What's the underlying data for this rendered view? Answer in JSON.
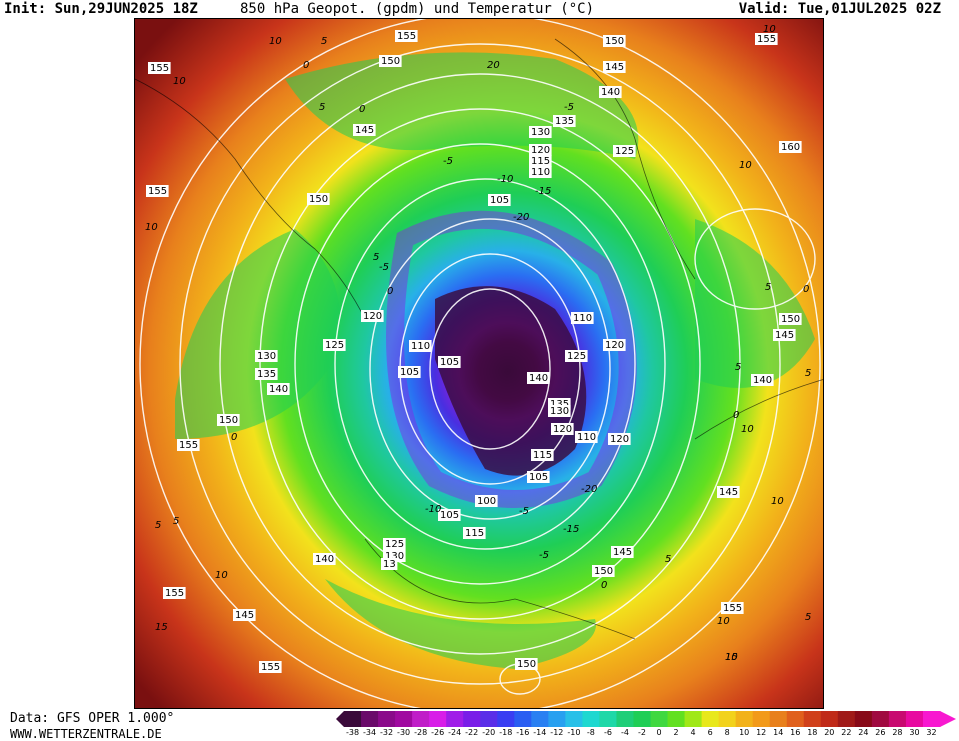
{
  "header": {
    "init": "Init: Sun,29JUN2025 18Z",
    "title": "850 hPa Geopot. (gpdm) und Temperatur (°C)",
    "valid": "Valid: Tue,01JUL2025 02Z"
  },
  "footer": {
    "source": "Data: GFS OPER 1.000°",
    "website": "WWW.WETTERZENTRALE.DE"
  },
  "colors": {
    "dark_red": "#7a1010",
    "red": "#c8341a",
    "orange": "#e8801c",
    "yellow_orange": "#f2b21a",
    "yellow": "#f2e21c",
    "light_green": "#62e020",
    "green": "#1fce56",
    "teal": "#1fc8a0",
    "cyan": "#28b0e8",
    "blue": "#2a5ef2",
    "indigo": "#4a2ee0",
    "purple": "#8a1ee8",
    "magenta": "#c81ed8",
    "dark_purple": "#3a0a3a"
  },
  "legend": {
    "ticks": [
      "-38",
      "-34",
      "-32",
      "-30",
      "-28",
      "-26",
      "-24",
      "-22",
      "-20",
      "-18",
      "-16",
      "-14",
      "-12",
      "-10",
      "-8",
      "-6",
      "-4",
      "-2",
      "0",
      "2",
      "4",
      "6",
      "8",
      "10",
      "12",
      "14",
      "16",
      "18",
      "20",
      "22",
      "24",
      "26",
      "28",
      "30",
      "32"
    ],
    "colors": [
      "#3a0a3a",
      "#6a0a6a",
      "#8a0a8a",
      "#a00aa0",
      "#c01ec8",
      "#d81ee8",
      "#a01ee8",
      "#7a1ee8",
      "#5a2ee8",
      "#3a3ef2",
      "#2a5ef2",
      "#2a80f2",
      "#28a0f0",
      "#28c0e8",
      "#1fd8d0",
      "#1fd8a8",
      "#1fce78",
      "#1fce56",
      "#40d840",
      "#62e020",
      "#a0e818",
      "#e8e81c",
      "#f2d21c",
      "#f2b21a",
      "#f29a1a",
      "#e8801c",
      "#e0601c",
      "#d0401a",
      "#c02a18",
      "#a01a18",
      "#880a18",
      "#a00a40",
      "#c80a70",
      "#e80aa0",
      "#f818d0"
    ]
  },
  "map_labels": {
    "geopotential": [
      {
        "text": "155"
      },
      {
        "text": "155"
      },
      {
        "text": "150"
      },
      {
        "text": "150"
      },
      {
        "text": "145"
      },
      {
        "text": "140"
      },
      {
        "text": "145"
      },
      {
        "text": "135"
      },
      {
        "text": "130"
      },
      {
        "text": "120"
      },
      {
        "text": "115"
      },
      {
        "text": "110"
      },
      {
        "text": "125"
      },
      {
        "text": "155"
      },
      {
        "text": "160"
      },
      {
        "text": "155"
      },
      {
        "text": "150"
      },
      {
        "text": "105"
      },
      {
        "text": "120"
      },
      {
        "text": "125"
      },
      {
        "text": "130"
      },
      {
        "text": "135"
      },
      {
        "text": "140"
      },
      {
        "text": "150"
      },
      {
        "text": "155"
      },
      {
        "text": "110"
      },
      {
        "text": "105"
      },
      {
        "text": "105"
      },
      {
        "text": "110"
      },
      {
        "text": "120"
      },
      {
        "text": "125"
      },
      {
        "text": "140"
      },
      {
        "text": "135"
      },
      {
        "text": "130"
      },
      {
        "text": "120"
      },
      {
        "text": "110"
      },
      {
        "text": "115"
      },
      {
        "text": "105"
      },
      {
        "text": "120"
      },
      {
        "text": "150"
      },
      {
        "text": "145"
      },
      {
        "text": "140"
      },
      {
        "text": "145"
      },
      {
        "text": "100"
      },
      {
        "text": "105"
      },
      {
        "text": "115"
      },
      {
        "text": "125"
      },
      {
        "text": "130"
      },
      {
        "text": "13"
      },
      {
        "text": "140"
      },
      {
        "text": "145"
      },
      {
        "text": "150"
      },
      {
        "text": "155"
      },
      {
        "text": "155"
      },
      {
        "text": "145"
      },
      {
        "text": "150"
      },
      {
        "text": "155"
      }
    ],
    "temperature": [
      {
        "text": "10"
      },
      {
        "text": "5"
      },
      {
        "text": "0"
      },
      {
        "text": "20"
      },
      {
        "text": "10"
      },
      {
        "text": "10"
      },
      {
        "text": "5"
      },
      {
        "text": "0"
      },
      {
        "text": "-5"
      },
      {
        "text": "-5"
      },
      {
        "text": "-15"
      },
      {
        "text": "-20"
      },
      {
        "text": "10"
      },
      {
        "text": "5"
      },
      {
        "text": "10"
      },
      {
        "text": "5"
      },
      {
        "text": "-5"
      },
      {
        "text": "0"
      },
      {
        "text": "5"
      },
      {
        "text": "0"
      },
      {
        "text": "-10"
      },
      {
        "text": "-5"
      },
      {
        "text": "-15"
      },
      {
        "text": "-20"
      },
      {
        "text": "-5"
      },
      {
        "text": "0"
      },
      {
        "text": "5"
      },
      {
        "text": "10"
      },
      {
        "text": "15"
      },
      {
        "text": "10"
      },
      {
        "text": "5"
      },
      {
        "text": "0"
      },
      {
        "text": "5"
      },
      {
        "text": "10"
      },
      {
        "text": "-10"
      },
      {
        "text": "5"
      },
      {
        "text": "0"
      },
      {
        "text": "5"
      },
      {
        "text": "10"
      },
      {
        "text": "15"
      },
      {
        "text": "10"
      }
    ]
  }
}
